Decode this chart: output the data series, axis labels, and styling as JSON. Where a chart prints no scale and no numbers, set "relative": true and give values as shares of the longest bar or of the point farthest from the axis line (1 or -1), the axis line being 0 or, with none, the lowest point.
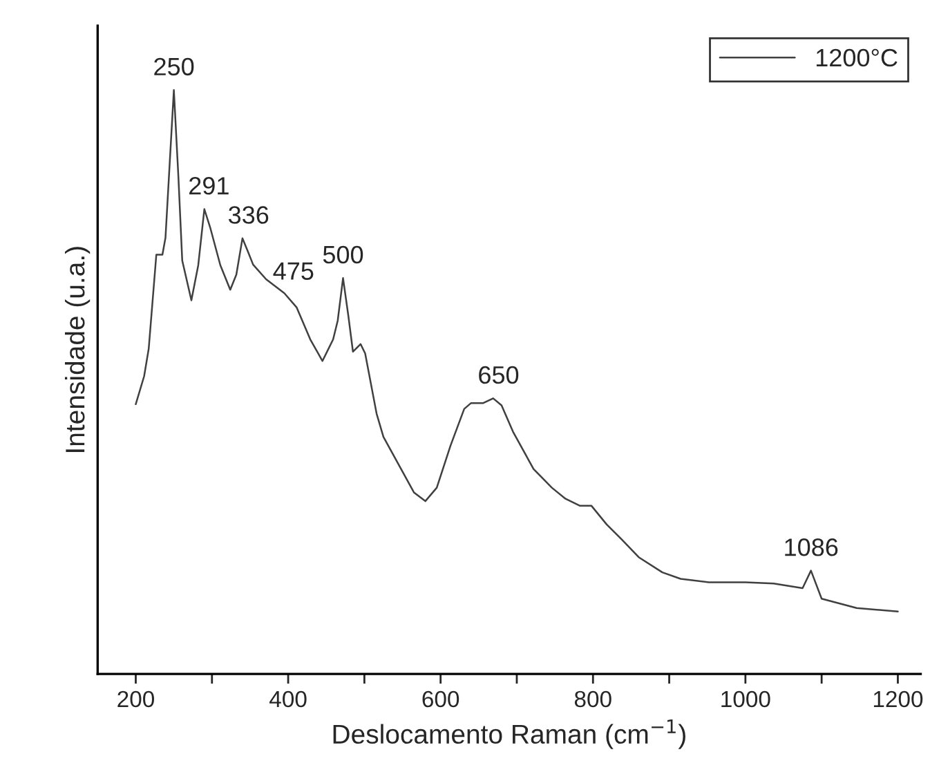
{
  "chart_data": {
    "type": "line",
    "relative": true,
    "xlabel": "Deslocamento Raman (cm$^{−1}$)",
    "ylabel": "Intensidade (u.a.)",
    "xlim": [
      150,
      1230
    ],
    "xticks": [
      200,
      {
        "value": 300,
        "label": null
      },
      400,
      {
        "value": 500,
        "label": null
      },
      600,
      {
        "value": 700,
        "label": null
      },
      800,
      {
        "value": 900,
        "label": null
      },
      1000,
      {
        "value": 1100,
        "label": null
      },
      1200
    ],
    "legend": "top right",
    "grid": false,
    "series": [
      {
        "name": "1200°C",
        "color": "#404040",
        "x": [
          200,
          211,
          217,
          227,
          235,
          239,
          250,
          256,
          261,
          273,
          282,
          290,
          298,
          311,
          324,
          332,
          340,
          347,
          354,
          371,
          395,
          411,
          429,
          445,
          459,
          465,
          472,
          479,
          485,
          495,
          501,
          516,
          525,
          565,
          580,
          595,
          613,
          631,
          640,
          656,
          669,
          680,
          695,
          722,
          746,
          764,
          783,
          798,
          818,
          838,
          860,
          891,
          915,
          952,
          1000,
          1037,
          1075,
          1086,
          1100,
          1146,
          1200
        ],
        "values": [
          0.462,
          0.51,
          0.557,
          0.718,
          0.718,
          0.747,
          1,
          0.85,
          0.708,
          0.64,
          0.7,
          0.796,
          0.763,
          0.7,
          0.658,
          0.684,
          0.746,
          0.724,
          0.701,
          0.676,
          0.652,
          0.628,
          0.573,
          0.536,
          0.573,
          0.605,
          0.678,
          0.613,
          0.552,
          0.565,
          0.549,
          0.446,
          0.406,
          0.311,
          0.296,
          0.319,
          0.391,
          0.454,
          0.464,
          0.464,
          0.472,
          0.46,
          0.415,
          0.351,
          0.319,
          0.3,
          0.288,
          0.288,
          0.256,
          0.23,
          0.2,
          0.174,
          0.163,
          0.157,
          0.157,
          0.155,
          0.147,
          0.177,
          0.129,
          0.113,
          0.107
        ]
      }
    ],
    "annotations": [
      {
        "text": "250",
        "x": 250,
        "y": 1
      },
      {
        "text": "291",
        "x": 296,
        "y": 0.796
      },
      {
        "text": "336",
        "x": 348,
        "y": 0.746
      },
      {
        "text": "475",
        "x": 407,
        "y": 0.65
      },
      {
        "text": "500",
        "x": 472,
        "y": 0.678
      },
      {
        "text": "650",
        "x": 676,
        "y": 0.472
      },
      {
        "text": "1086",
        "x": 1086,
        "y": 0.177
      }
    ]
  }
}
